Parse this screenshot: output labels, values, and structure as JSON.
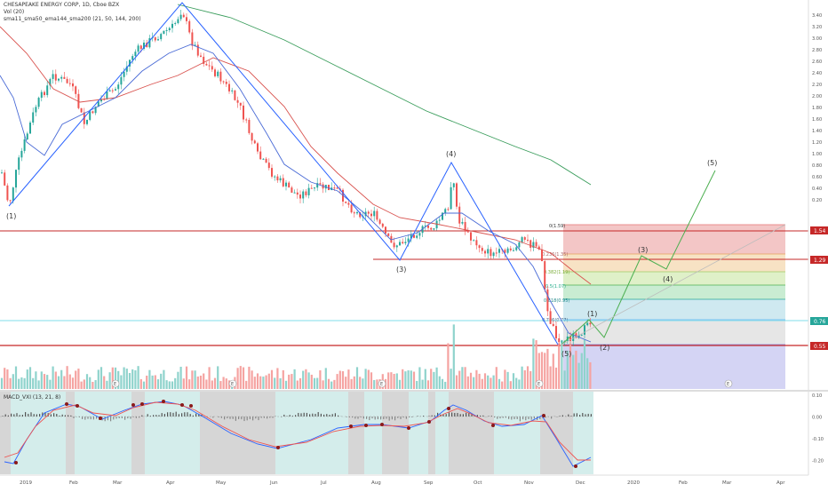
{
  "header": {
    "title": "CHESAPEAKE ENERGY CORP, 1D, Cboe BZX",
    "vol_label": "Vol (20)",
    "ma_label": "sma11_sma50_ema144_sma200 (21, 50, 144, 200)"
  },
  "macd": {
    "label": "MACD_VXI (13, 21, 8)"
  },
  "price_axis": {
    "ticks": [
      "3.40",
      "3.20",
      "3.00",
      "2.80",
      "2.60",
      "2.40",
      "2.20",
      "2.00",
      "1.80",
      "1.60",
      "1.40",
      "1.20",
      "1.00",
      "0.80",
      "0.60",
      "0.40",
      "0.20"
    ],
    "badges": {
      "resistance": "1.54",
      "mid": "1.29",
      "current": "0.76",
      "support": "0.55"
    },
    "badge_colors": {
      "red": "#c62828",
      "teal": "#26a69a"
    }
  },
  "macd_axis": {
    "ticks": [
      "0.10",
      "0.00",
      "-0.10",
      "-0.20"
    ]
  },
  "time_axis": {
    "ticks": [
      "2019",
      "Feb",
      "Mar",
      "Apr",
      "May",
      "Jun",
      "Jul",
      "Aug",
      "Sep",
      "Oct",
      "Nov",
      "Dec",
      "2020",
      "Feb",
      "Mar",
      "Apr"
    ]
  },
  "fib_levels": [
    "0(1.59)",
    "0.236(1.35)",
    "0.382(1.19)",
    "0.5(1.07)",
    "0.618(0.95)",
    "0.786(0.77)",
    "1(0.55)"
  ],
  "wave_labels": {
    "w1_a": "(1)",
    "w3_a": "(3)",
    "w4_a": "(4)",
    "w5_a": "(5)",
    "w1_b": "(1)",
    "w2_b": "(2)",
    "w3_b": "(3)",
    "w4_b": "(4)",
    "w5_b": "(5)"
  },
  "earnings_marker": "E",
  "colors": {
    "up": "#26a69a",
    "down": "#ef5350",
    "sma_blue": "#4a6bd6",
    "ema_red": "#d9534f",
    "sma_green": "#3a9d5c"
  }
}
